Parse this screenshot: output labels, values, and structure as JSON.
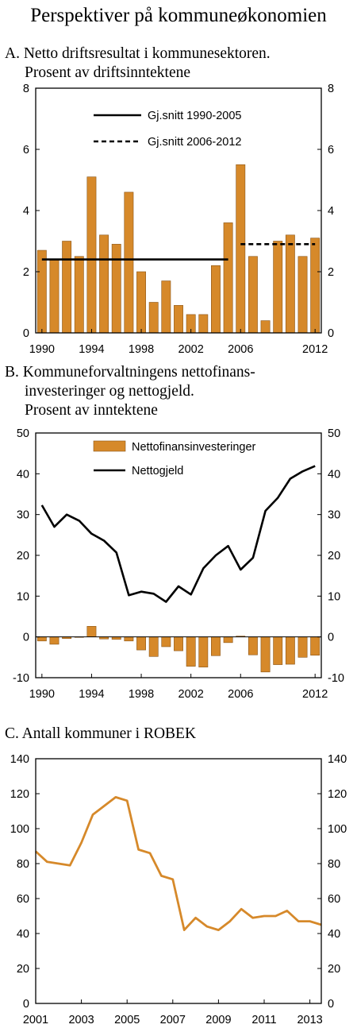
{
  "page": {
    "title": "Perspektiver på kommuneøkonomien"
  },
  "colors": {
    "bar": "#d6892a",
    "bar_edge": "#8a5518",
    "line": "#000000",
    "robek_line": "#d6892a"
  },
  "chart_data": [
    {
      "id": "A",
      "type": "bar",
      "title_lines": [
        "A.  Netto driftsresultat i kommunesektoren.",
        "Prosent av driftsinntektene"
      ],
      "x": [
        1990,
        1991,
        1992,
        1993,
        1994,
        1995,
        1996,
        1997,
        1998,
        1999,
        2000,
        2001,
        2002,
        2003,
        2004,
        2005,
        2006,
        2007,
        2008,
        2009,
        2010,
        2011,
        2012
      ],
      "x_ticks": [
        "1990",
        "1994",
        "1998",
        "2002",
        "2006",
        "2012"
      ],
      "x_tick_years": [
        1990,
        1994,
        1998,
        2002,
        2006,
        2012
      ],
      "values": [
        2.7,
        2.4,
        3.0,
        2.5,
        5.1,
        3.2,
        2.9,
        4.6,
        2.0,
        1.0,
        1.7,
        0.9,
        0.6,
        0.6,
        2.2,
        3.6,
        5.5,
        2.5,
        0.4,
        3.0,
        3.2,
        2.5,
        3.1
      ],
      "ylim": [
        0,
        8
      ],
      "y_ticks": [
        "0",
        "2",
        "4",
        "6",
        "8"
      ],
      "y_tick_values": [
        0,
        2,
        4,
        6,
        8
      ],
      "reference_lines": [
        {
          "name": "Gj.snitt 1990-2005",
          "style": "solid",
          "x_start": 1990,
          "x_end": 2005,
          "value": 2.4
        },
        {
          "name": "Gj.snitt 2006-2012",
          "style": "dashed",
          "x_start": 2006,
          "x_end": 2012,
          "value": 2.9
        }
      ],
      "legend": [
        "Gj.snitt 1990-2005",
        "Gj.snitt 2006-2012"
      ],
      "legend_position": "top-center",
      "grid": false
    },
    {
      "id": "B",
      "type": "bar+line",
      "title_lines": [
        "B.  Kommuneforvaltningens nettofinans-",
        "investeringer og nettogjeld.",
        "Prosent av inntektene"
      ],
      "x": [
        1990,
        1991,
        1992,
        1993,
        1994,
        1995,
        1996,
        1997,
        1998,
        1999,
        2000,
        2001,
        2002,
        2003,
        2004,
        2005,
        2006,
        2007,
        2008,
        2009,
        2010,
        2011,
        2012
      ],
      "x_ticks": [
        "1990",
        "1994",
        "1998",
        "2002",
        "2006",
        "2012"
      ],
      "x_tick_years": [
        1990,
        1994,
        1998,
        2002,
        2006,
        2012
      ],
      "series": [
        {
          "name": "Nettofinansinvesteringer",
          "kind": "bar",
          "values": [
            -1.0,
            -1.8,
            -0.4,
            0.0,
            2.6,
            -0.5,
            -0.6,
            -1.0,
            -3.2,
            -4.8,
            -2.4,
            -3.4,
            -7.2,
            -7.4,
            -4.6,
            -1.4,
            0.2,
            -4.4,
            -8.6,
            -6.8,
            -6.7,
            -5.0,
            -4.5
          ]
        },
        {
          "name": "Nettogjeld",
          "kind": "line",
          "values": [
            32.3,
            27.0,
            30.0,
            28.5,
            25.3,
            23.6,
            20.7,
            10.2,
            11.1,
            10.6,
            8.6,
            12.4,
            10.4,
            16.8,
            20.0,
            22.3,
            16.5,
            19.4,
            30.9,
            34.1,
            38.8,
            40.6,
            41.9
          ]
        }
      ],
      "ylim": [
        -10,
        50
      ],
      "y_ticks": [
        "-10",
        "0",
        "10",
        "20",
        "30",
        "40",
        "50"
      ],
      "y_tick_values": [
        -10,
        0,
        10,
        20,
        30,
        40,
        50
      ],
      "legend": [
        "Nettofinansinvesteringer",
        "Nettogjeld"
      ],
      "legend_position": "top-center",
      "grid": false
    },
    {
      "id": "C",
      "type": "line",
      "title_lines": [
        "C. Antall kommuner i ROBEK"
      ],
      "series": [
        {
          "name": "",
          "x": [
            2001.0,
            2001.5,
            2002.0,
            2002.5,
            2003.0,
            2003.5,
            2004.0,
            2004.5,
            2005.0,
            2005.5,
            2006.0,
            2006.5,
            2007.0,
            2007.5,
            2008.0,
            2008.5,
            2009.0,
            2009.5,
            2010.0,
            2010.5,
            2011.0,
            2011.5,
            2012.0,
            2012.5,
            2013.0,
            2013.5
          ],
          "values": [
            87,
            81,
            80,
            79,
            92,
            108,
            113,
            118,
            116,
            88,
            86,
            73,
            71,
            42,
            49,
            44,
            42,
            47,
            54,
            49,
            50,
            50,
            53,
            47,
            47,
            45
          ]
        }
      ],
      "xlim": [
        2001,
        2013.5
      ],
      "x_ticks": [
        "2001",
        "2003",
        "2005",
        "2007",
        "2009",
        "2011",
        "2013"
      ],
      "x_tick_years": [
        2001,
        2003,
        2005,
        2007,
        2009,
        2011,
        2013
      ],
      "ylim": [
        0,
        140
      ],
      "y_ticks": [
        "0",
        "20",
        "40",
        "60",
        "80",
        "100",
        "120",
        "140"
      ],
      "y_tick_values": [
        0,
        20,
        40,
        60,
        80,
        100,
        120,
        140
      ],
      "grid": false
    }
  ]
}
